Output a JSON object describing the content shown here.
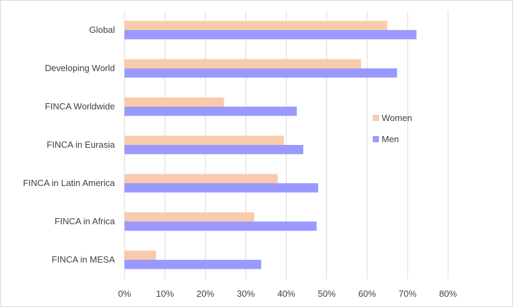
{
  "chart_data": {
    "type": "bar",
    "orientation": "horizontal",
    "title": "",
    "xlabel": "",
    "ylabel": "",
    "categories": [
      "Global",
      "Developing World",
      "FINCA Worldwide",
      "FINCA in Eurasia",
      "FINCA in Latin America",
      "FINCA in Africa",
      "FINCA in MESA"
    ],
    "series": [
      {
        "name": "Women",
        "color": "#f8cbad",
        "values": [
          65,
          58.5,
          24.6,
          39.4,
          37.9,
          32.1,
          7.8
        ]
      },
      {
        "name": "Men",
        "color": "#9999ff",
        "values": [
          72.2,
          67.4,
          42.6,
          44.2,
          47.9,
          47.5,
          33.8
        ]
      }
    ],
    "xlim": [
      0,
      80
    ],
    "xticks": [
      "0%",
      "10%",
      "20%",
      "30%",
      "40%",
      "50%",
      "60%",
      "70%",
      "80%"
    ],
    "grid": true,
    "legend_position": "right"
  }
}
